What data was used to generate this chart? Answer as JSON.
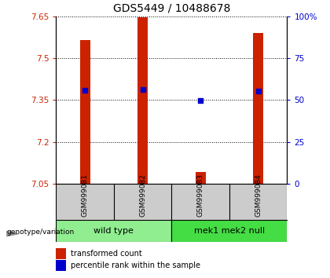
{
  "title": "GDS5449 / 10488678",
  "samples": [
    "GSM999081",
    "GSM999082",
    "GSM999083",
    "GSM999084"
  ],
  "groups": [
    {
      "label": "wild type",
      "indices": [
        0,
        1
      ],
      "color": "#90EE90"
    },
    {
      "label": "mek1 mek2 null",
      "indices": [
        2,
        3
      ],
      "color": "#44DD44"
    }
  ],
  "y_min": 7.05,
  "y_max": 7.65,
  "bar_bottom": 7.05,
  "bar_tops": [
    7.565,
    7.648,
    7.092,
    7.592
  ],
  "percentile_values": [
    7.385,
    7.388,
    7.348,
    7.383
  ],
  "yticks_left": [
    7.05,
    7.2,
    7.35,
    7.5,
    7.65
  ],
  "yticks_right": [
    0,
    25,
    50,
    75,
    100
  ],
  "bar_color": "#CC2200",
  "dot_color": "#0000CC",
  "bar_width": 0.18,
  "group_label": "genotype/variation",
  "legend_bar": "transformed count",
  "legend_dot": "percentile rank within the sample",
  "title_fontsize": 10,
  "tick_fontsize": 7.5,
  "sample_label_fontsize": 6.5,
  "group_label_fontsize": 8,
  "group_text_fontsize": 8
}
